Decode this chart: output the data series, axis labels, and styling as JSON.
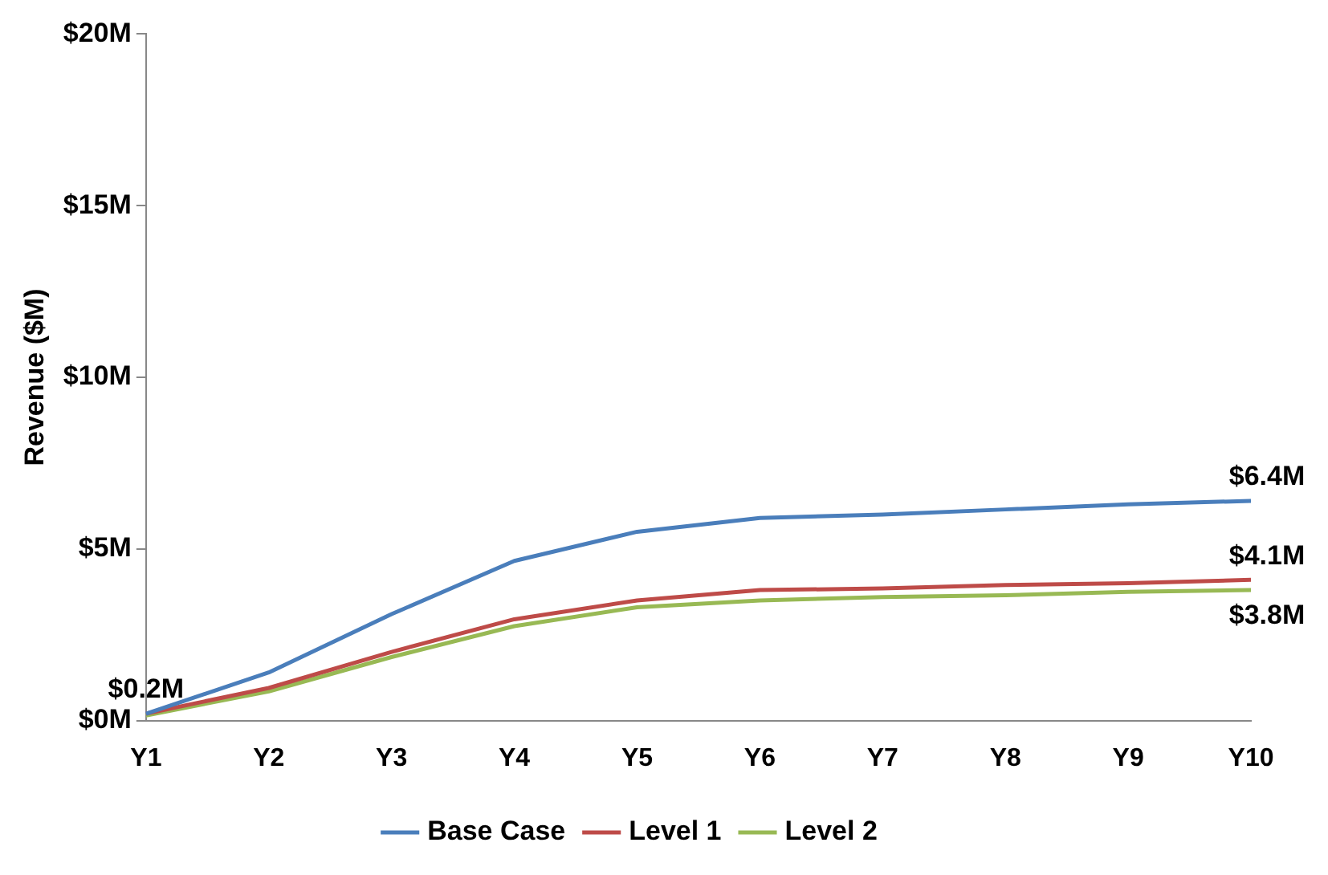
{
  "chart_data": {
    "type": "line",
    "ylabel": "Revenue ($M)",
    "categories": [
      "Y1",
      "Y2",
      "Y3",
      "Y4",
      "Y5",
      "Y6",
      "Y7",
      "Y8",
      "Y9",
      "Y10"
    ],
    "series": [
      {
        "name": "Base Case",
        "color": "#4a7ebb",
        "values": [
          0.2,
          1.4,
          3.1,
          4.65,
          5.5,
          5.9,
          6.0,
          6.15,
          6.3,
          6.4
        ],
        "value_labels": [
          "$0.2M",
          null,
          null,
          null,
          null,
          null,
          null,
          null,
          null,
          "$6.4M"
        ]
      },
      {
        "name": "Level 1",
        "color": "#be4b48",
        "values": [
          0.2,
          0.95,
          2.0,
          2.95,
          3.5,
          3.8,
          3.85,
          3.95,
          4.0,
          4.1
        ],
        "value_labels": [
          null,
          null,
          null,
          null,
          null,
          null,
          null,
          null,
          null,
          "$4.1M"
        ]
      },
      {
        "name": "Level 2",
        "color": "#98b954",
        "values": [
          0.15,
          0.85,
          1.85,
          2.75,
          3.3,
          3.5,
          3.6,
          3.65,
          3.75,
          3.8
        ],
        "value_labels": [
          null,
          null,
          null,
          null,
          null,
          null,
          null,
          null,
          null,
          "$3.8M"
        ]
      }
    ],
    "ylim": [
      0,
      20
    ],
    "yticks": [
      {
        "value": 0,
        "label": "$0M"
      },
      {
        "value": 5,
        "label": "$5M"
      },
      {
        "value": 10,
        "label": "$10M"
      },
      {
        "value": 15,
        "label": "$15M"
      },
      {
        "value": 20,
        "label": "$20M"
      }
    ],
    "grid": false,
    "legend": "bottom",
    "marker": "none",
    "line_style": "solid"
  }
}
